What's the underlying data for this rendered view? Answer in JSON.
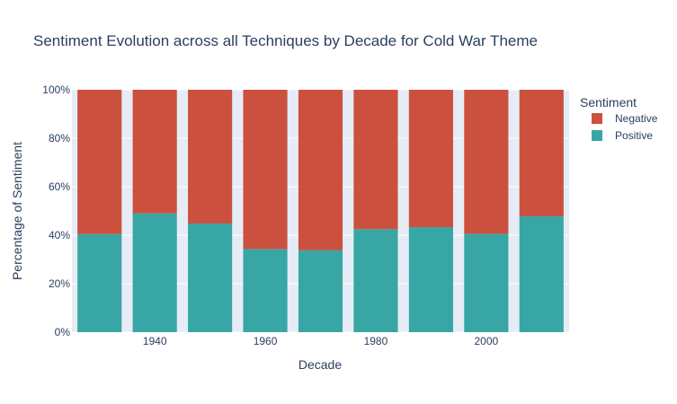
{
  "chart_data": {
    "type": "bar",
    "stacked": true,
    "title": "Sentiment Evolution across all Techniques by Decade for Cold War Theme",
    "xlabel": "Decade",
    "ylabel": "Percentage of Sentiment",
    "x": [
      1930,
      1940,
      1950,
      1960,
      1970,
      1980,
      1990,
      2000,
      2010
    ],
    "x_tick_values": [
      1940,
      1960,
      1980,
      2000
    ],
    "x_tick_labels": [
      "1940",
      "1960",
      "1980",
      "2000"
    ],
    "ylim": [
      0,
      100
    ],
    "y_tick_values": [
      0,
      20,
      40,
      60,
      80,
      100
    ],
    "y_tick_labels": [
      "0%",
      "20%",
      "40%",
      "60%",
      "80%",
      "100%"
    ],
    "legend_title": "Sentiment",
    "legend_position": "top-right",
    "grid": true,
    "series": [
      {
        "name": "Positive",
        "color": "#38a6a5",
        "values": [
          40.5,
          49.0,
          44.8,
          34.3,
          33.8,
          42.5,
          43.3,
          40.6,
          47.8
        ]
      },
      {
        "name": "Negative",
        "color": "#cc503e",
        "values": [
          59.5,
          51.0,
          55.2,
          65.7,
          66.2,
          57.5,
          56.7,
          59.4,
          52.2
        ]
      }
    ],
    "legend_order": [
      "Negative",
      "Positive"
    ],
    "plot_background": "#e5ecf6"
  }
}
